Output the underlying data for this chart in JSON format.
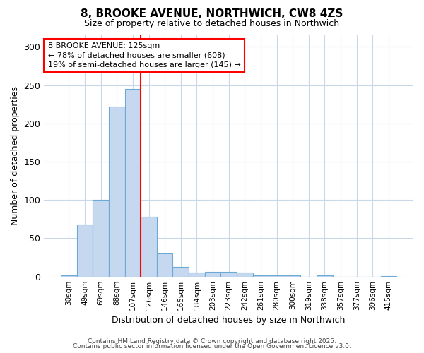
{
  "title1": "8, BROOKE AVENUE, NORTHWICH, CW8 4ZS",
  "title2": "Size of property relative to detached houses in Northwich",
  "xlabel": "Distribution of detached houses by size in Northwich",
  "ylabel": "Number of detached properties",
  "categories": [
    "30sqm",
    "49sqm",
    "69sqm",
    "88sqm",
    "107sqm",
    "126sqm",
    "146sqm",
    "165sqm",
    "184sqm",
    "203sqm",
    "223sqm",
    "242sqm",
    "261sqm",
    "280sqm",
    "300sqm",
    "319sqm",
    "338sqm",
    "357sqm",
    "377sqm",
    "396sqm",
    "415sqm"
  ],
  "values": [
    2,
    68,
    100,
    222,
    245,
    78,
    30,
    13,
    5,
    6,
    6,
    5,
    2,
    2,
    2,
    0,
    2,
    0,
    0,
    0,
    1
  ],
  "bar_color": "#c5d8f0",
  "bar_edgecolor": "#6aaad4",
  "background_color": "#ffffff",
  "grid_color": "#c8d8e8",
  "vline_color": "red",
  "vline_x_idx": 5,
  "annotation_line1": "8 BROOKE AVENUE: 125sqm",
  "annotation_line2": "← 78% of detached houses are smaller (608)",
  "annotation_line3": "19% of semi-detached houses are larger (145) →",
  "annotation_box_color": "white",
  "annotation_box_edgecolor": "red",
  "ylim": [
    0,
    315
  ],
  "yticks": [
    0,
    50,
    100,
    150,
    200,
    250,
    300
  ],
  "footer1": "Contains HM Land Registry data © Crown copyright and database right 2025.",
  "footer2": "Contains public sector information licensed under the Open Government Licence v3.0."
}
